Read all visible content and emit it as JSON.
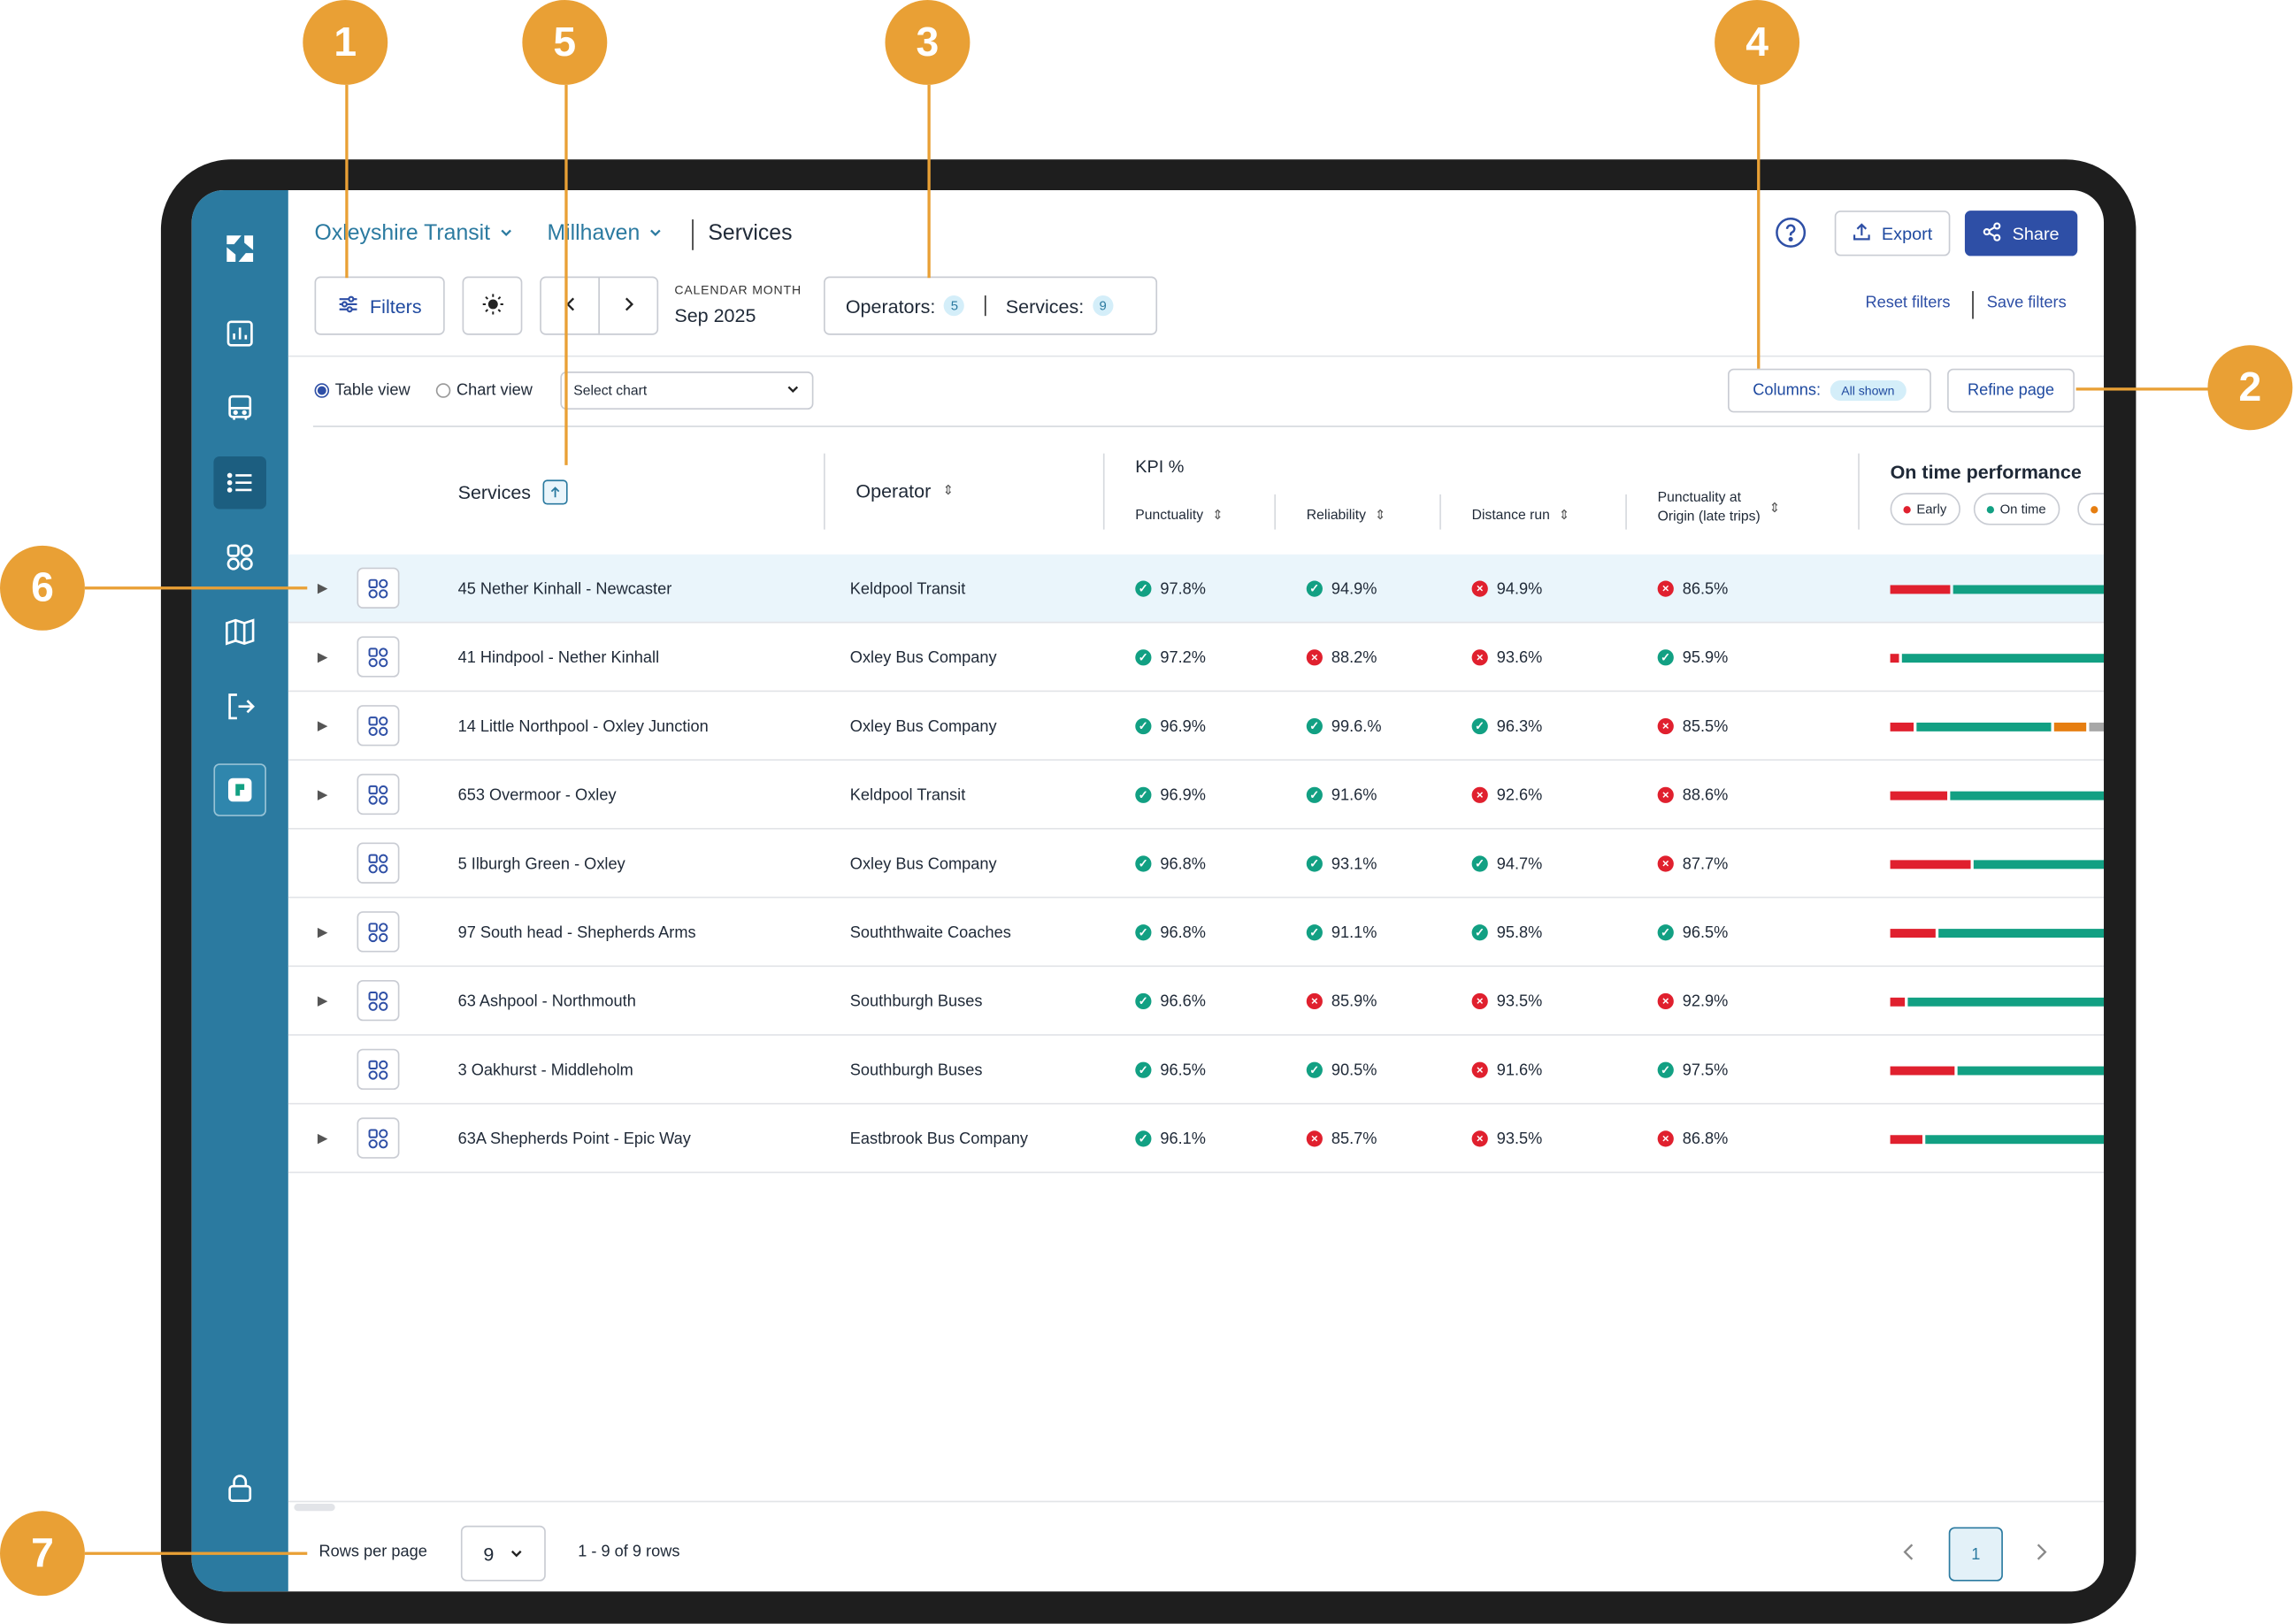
{
  "breadcrumb": {
    "org": "Oxleyshire Transit",
    "area": "Millhaven",
    "page": "Services"
  },
  "toolbar": {
    "filters_label": "Filters",
    "period_caption": "CALENDAR MONTH",
    "period_value": "Sep 2025",
    "operators_label": "Operators:",
    "operators_count": "5",
    "services_label": "Services:",
    "services_count": "9",
    "export_label": "Export",
    "share_label": "Share",
    "reset_filters": "Reset filters",
    "save_filters": "Save filters"
  },
  "view": {
    "table_view": "Table view",
    "chart_view": "Chart view",
    "selected": "table",
    "chart_select_placeholder": "Select chart",
    "columns_label": "Columns:",
    "columns_badge": "All shown",
    "refine_page": "Refine page"
  },
  "table": {
    "headers": {
      "services": "Services",
      "operator": "Operator",
      "kpi_group": "KPI %",
      "punctuality": "Punctuality",
      "reliability": "Reliability",
      "distance_run": "Distance run",
      "punct_origin_line1": "Punctuality at",
      "punct_origin_line2": "Origin (late trips)",
      "otp": "On time performance",
      "otp_legend": [
        "Early",
        "On time"
      ]
    },
    "rows": [
      {
        "service": "45 Nether Kinhall - Newcaster",
        "operator": "Keldpool Transit",
        "punctuality": "97.8%",
        "reliability": "94.9%",
        "distance_run": "94.9%",
        "punct_origin": "86.5%",
        "punctuality_ok": true,
        "reliability_ok": true,
        "distance_ok": false,
        "origin_ok": false,
        "expandable": true,
        "otp": [
          0.28,
          0.72,
          0,
          0
        ]
      },
      {
        "service": "41 Hindpool - Nether Kinhall",
        "operator": "Oxley Bus Company",
        "punctuality": "97.2%",
        "reliability": "88.2%",
        "distance_run": "93.6%",
        "punct_origin": "95.9%",
        "punctuality_ok": true,
        "reliability_ok": false,
        "distance_ok": false,
        "origin_ok": true,
        "expandable": true,
        "otp": [
          0.04,
          0.96,
          0,
          0
        ]
      },
      {
        "service": "14 Little Northpool - Oxley Junction",
        "operator": "Oxley Bus Company",
        "punctuality": "96.9%",
        "reliability": "99.6.%",
        "distance_run": "96.3%",
        "punct_origin": "85.5%",
        "punctuality_ok": true,
        "reliability_ok": true,
        "distance_ok": true,
        "origin_ok": false,
        "expandable": true,
        "otp": [
          0.11,
          0.61,
          0.15,
          0.08
        ]
      },
      {
        "service": "653 Overmoor - Oxley",
        "operator": "Keldpool Transit",
        "punctuality": "96.9%",
        "reliability": "91.6%",
        "distance_run": "92.6%",
        "punct_origin": "88.6%",
        "punctuality_ok": true,
        "reliability_ok": true,
        "distance_ok": false,
        "origin_ok": false,
        "expandable": true,
        "otp": [
          0.27,
          0.73,
          0,
          0
        ]
      },
      {
        "service": "5 Ilburgh Green - Oxley",
        "operator": "Oxley Bus Company",
        "punctuality": "96.8%",
        "reliability": "93.1%",
        "distance_run": "94.7%",
        "punct_origin": "87.7%",
        "punctuality_ok": true,
        "reliability_ok": true,
        "distance_ok": true,
        "origin_ok": false,
        "expandable": false,
        "otp": [
          0.38,
          0.62,
          0,
          0
        ]
      },
      {
        "service": "97 South head - Shepherds Arms",
        "operator": "Souththwaite Coaches",
        "punctuality": "96.8%",
        "reliability": "91.1%",
        "distance_run": "95.8%",
        "punct_origin": "96.5%",
        "punctuality_ok": true,
        "reliability_ok": true,
        "distance_ok": true,
        "origin_ok": true,
        "expandable": true,
        "otp": [
          0.21,
          0.79,
          0,
          0
        ]
      },
      {
        "service": "63 Ashpool - Northmouth",
        "operator": "Southburgh Buses",
        "punctuality": "96.6%",
        "reliability": "85.9%",
        "distance_run": "93.5%",
        "punct_origin": "92.9%",
        "punctuality_ok": true,
        "reliability_ok": false,
        "distance_ok": false,
        "origin_ok": false,
        "expandable": true,
        "otp": [
          0.07,
          0.93,
          0,
          0
        ]
      },
      {
        "service": "3 Oakhurst - Middleholm",
        "operator": "Southburgh Buses",
        "punctuality": "96.5%",
        "reliability": "90.5%",
        "distance_run": "91.6%",
        "punct_origin": "97.5%",
        "punctuality_ok": true,
        "reliability_ok": true,
        "distance_ok": false,
        "origin_ok": true,
        "expandable": false,
        "otp": [
          0.3,
          0.7,
          0,
          0
        ]
      },
      {
        "service": "63A Shepherds Point - Epic Way",
        "operator": "Eastbrook Bus Company",
        "punctuality": "96.1%",
        "reliability": "85.7%",
        "distance_run": "93.5%",
        "punct_origin": "86.8%",
        "punctuality_ok": true,
        "reliability_ok": false,
        "distance_ok": false,
        "origin_ok": false,
        "expandable": true,
        "otp": [
          0.15,
          0.85,
          0,
          0
        ]
      }
    ]
  },
  "footer": {
    "rows_per_page_label": "Rows per page",
    "rows_per_page_value": "9",
    "range": "1 - 9 of 9 rows",
    "current_page": "1"
  },
  "callouts": [
    "1",
    "2",
    "3",
    "4",
    "5",
    "6",
    "7"
  ],
  "colors": {
    "accent": "#2b7aa0",
    "primary": "#2e4fa6",
    "ok": "#12a083",
    "bad": "#e0202e",
    "amber": "#e67e11",
    "grey": "#a7a7a7",
    "callout": "#e9a035",
    "highlight": "#eaf5fb"
  }
}
